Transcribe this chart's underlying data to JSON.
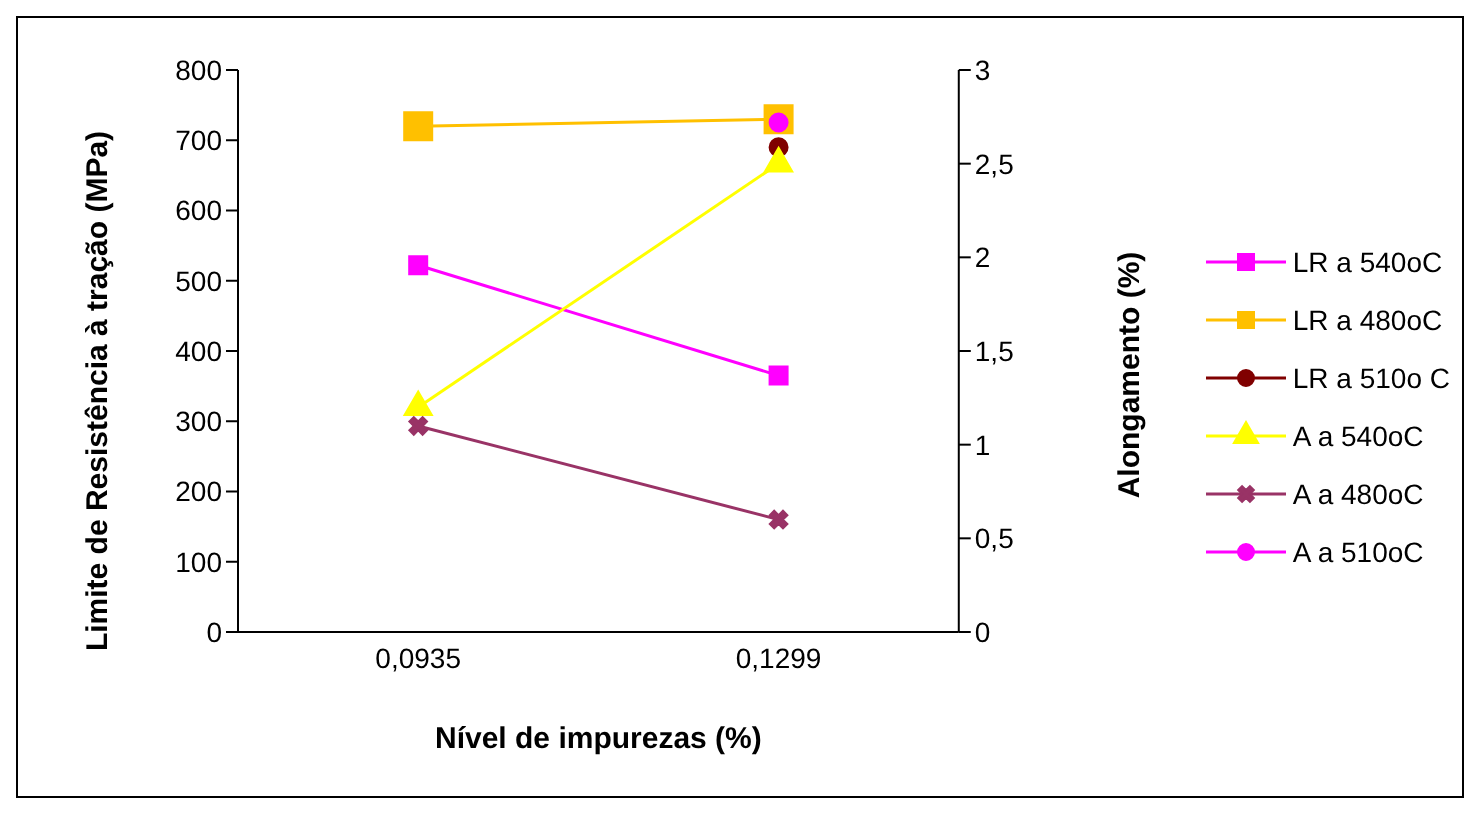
{
  "chart_data": {
    "type": "line",
    "xlabel": "Nível de impurezas (%)",
    "ylabel": "Limite de Resistência à tração (MPa)",
    "y2label": "Alongamento (%)",
    "categories": [
      "0,0935",
      "0,1299"
    ],
    "ylim": [
      0,
      800
    ],
    "yticks": [
      0,
      100,
      200,
      300,
      400,
      500,
      600,
      700,
      800
    ],
    "y2lim": [
      0,
      3
    ],
    "y2ticks": [
      0,
      {
        "value": 0.5,
        "label": "0,5"
      },
      1,
      {
        "value": 1.5,
        "label": "1,5"
      },
      2,
      {
        "value": 2.5,
        "label": "2,5"
      },
      3
    ],
    "legend": "right",
    "grid": false,
    "series": [
      {
        "name": "LR a 540oC",
        "color": "#ff00ff",
        "marker": "square",
        "values": [
          522,
          365
        ]
      },
      {
        "name": "LR a 480oC",
        "color": "#ffc000",
        "marker": "square",
        "values": [
          720,
          730
        ]
      },
      {
        "name": "LR a 510o C",
        "color": "#800000",
        "marker": "circle",
        "values": [
          null,
          690
        ]
      },
      {
        "name": "A a 540oC",
        "color": "#ffff00",
        "marker": "triangle",
        "axis": "y2",
        "values": [
          1.2,
          2.5
        ]
      },
      {
        "name": "A a 480oC",
        "color": "#993366",
        "marker": "cross",
        "axis": "y2",
        "values": [
          1.1,
          0.6
        ]
      },
      {
        "name": "A a 510oC",
        "color": "#ff00ff",
        "marker": "circle",
        "axis": "y2",
        "values": [
          null,
          2.72
        ]
      }
    ]
  }
}
